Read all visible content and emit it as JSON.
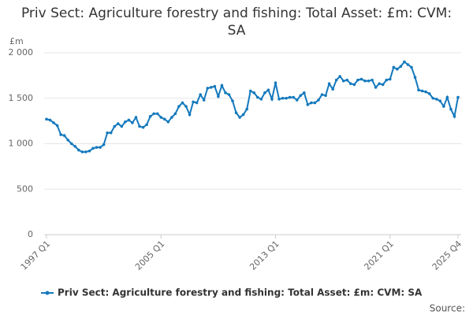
{
  "chart_data": {
    "type": "line",
    "title": "Priv Sect: Agriculture forestry and fishing: Total Asset: £m: CVM: SA",
    "y_axis_label": "£m",
    "source": "Source:",
    "categories": [
      "1997 Q1",
      null,
      null,
      null,
      null,
      null,
      null,
      null,
      null,
      null,
      null,
      null,
      null,
      null,
      null,
      null,
      null,
      null,
      null,
      null,
      null,
      null,
      null,
      null,
      null,
      null,
      null,
      null,
      null,
      null,
      null,
      null,
      "2005 Q1",
      null,
      null,
      null,
      null,
      null,
      null,
      null,
      null,
      null,
      null,
      null,
      null,
      null,
      null,
      null,
      null,
      null,
      null,
      null,
      null,
      null,
      null,
      null,
      null,
      null,
      null,
      null,
      null,
      null,
      null,
      null,
      "2013 Q1",
      null,
      null,
      null,
      null,
      null,
      null,
      null,
      null,
      null,
      null,
      null,
      null,
      null,
      null,
      null,
      null,
      null,
      null,
      null,
      null,
      null,
      null,
      null,
      null,
      null,
      null,
      null,
      null,
      null,
      null,
      null,
      "2021 Q1",
      null,
      null,
      null,
      null,
      null,
      null,
      null,
      null,
      null,
      null,
      null,
      null,
      null,
      null,
      null,
      null,
      null,
      null,
      "2025 Q4"
    ],
    "series": [
      {
        "name": "Priv Sect: Agriculture forestry and fishing: Total Asset: £m: CVM: SA",
        "color": "#1479bd",
        "values": [
          1270,
          1260,
          1230,
          1200,
          1100,
          1090,
          1040,
          1000,
          970,
          930,
          910,
          910,
          920,
          950,
          960,
          960,
          990,
          1120,
          1120,
          1190,
          1220,
          1190,
          1240,
          1260,
          1230,
          1290,
          1190,
          1180,
          1210,
          1300,
          1330,
          1330,
          1290,
          1270,
          1240,
          1290,
          1330,
          1410,
          1450,
          1410,
          1320,
          1460,
          1450,
          1540,
          1480,
          1610,
          1620,
          1630,
          1520,
          1640,
          1560,
          1540,
          1470,
          1340,
          1290,
          1320,
          1380,
          1580,
          1560,
          1510,
          1490,
          1560,
          1590,
          1490,
          1670,
          1490,
          1500,
          1500,
          1510,
          1510,
          1480,
          1530,
          1560,
          1430,
          1450,
          1450,
          1480,
          1540,
          1530,
          1660,
          1600,
          1700,
          1740,
          1690,
          1700,
          1660,
          1650,
          1700,
          1710,
          1690,
          1690,
          1700,
          1620,
          1660,
          1650,
          1700,
          1710,
          1840,
          1820,
          1850,
          1900,
          1870,
          1840,
          1730,
          1590,
          1580,
          1570,
          1550,
          1500,
          1490,
          1470,
          1410,
          1510,
          1380,
          1300,
          1510
        ]
      }
    ],
    "ylim": [
      0,
      2000
    ],
    "yticks": [
      0,
      500,
      {
        "value": 1000,
        "label": "1 000"
      },
      {
        "value": 1500,
        "label": "1 500"
      },
      {
        "value": 2000,
        "label": "2 000"
      }
    ],
    "grid": true
  }
}
